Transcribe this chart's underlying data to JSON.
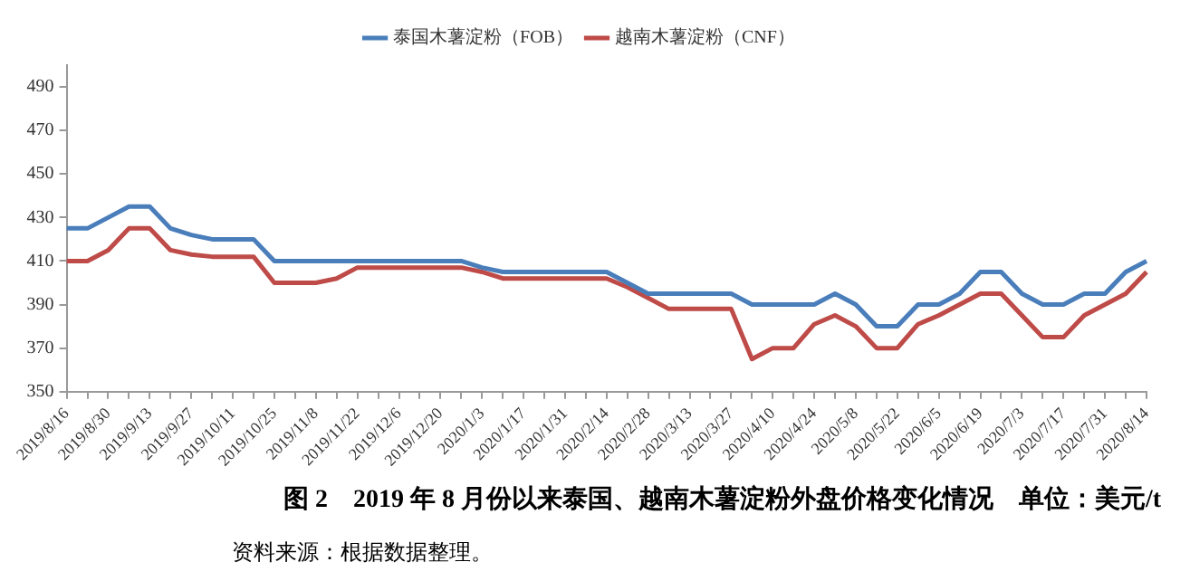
{
  "chart_data": {
    "type": "line",
    "title": "图 2　2019 年 8 月份以来泰国、越南木薯淀粉外盘价格变化情况　单位：美元/t",
    "annotations": [
      "资料来源：根据数据整理。"
    ],
    "categories": [
      "2019/8/16",
      null,
      "2019/8/30",
      null,
      "2019/9/13",
      null,
      "2019/9/27",
      null,
      "2019/10/11",
      null,
      "2019/10/25",
      null,
      "2019/11/8",
      null,
      "2019/11/22",
      null,
      "2019/12/6",
      null,
      "2019/12/20",
      null,
      "2020/1/3",
      null,
      "2020/1/17",
      null,
      "2020/1/31",
      null,
      "2020/2/14",
      null,
      "2020/2/28",
      null,
      "2020/3/13",
      null,
      "2020/3/27",
      null,
      "2020/4/10",
      null,
      "2020/4/24",
      null,
      "2020/5/8",
      null,
      "2020/5/22",
      null,
      "2020/6/5",
      null,
      "2020/6/19",
      null,
      "2020/7/3",
      null,
      "2020/7/17",
      null,
      "2020/7/31",
      null,
      "2020/8/14"
    ],
    "series": [
      {
        "name": "泰国木薯淀粉（FOB）",
        "color": "#4a7ebb",
        "values": [
          425,
          425,
          430,
          435,
          435,
          425,
          422,
          420,
          420,
          420,
          410,
          410,
          410,
          410,
          410,
          410,
          410,
          410,
          410,
          410,
          407,
          405,
          405,
          405,
          405,
          405,
          405,
          400,
          395,
          395,
          395,
          395,
          395,
          390,
          390,
          390,
          390,
          395,
          390,
          380,
          380,
          390,
          390,
          395,
          405,
          405,
          395,
          390,
          390,
          395,
          395,
          405,
          410
        ]
      },
      {
        "name": "越南木薯淀粉（CNF）",
        "color": "#be4b48",
        "values": [
          410,
          410,
          415,
          425,
          425,
          415,
          413,
          412,
          412,
          412,
          400,
          400,
          400,
          402,
          407,
          407,
          407,
          407,
          407,
          407,
          405,
          402,
          402,
          402,
          402,
          402,
          402,
          398,
          393,
          388,
          388,
          388,
          388,
          365,
          370,
          370,
          381,
          385,
          380,
          370,
          370,
          381,
          385,
          390,
          395,
          395,
          385,
          375,
          375,
          385,
          390,
          395,
          405
        ]
      }
    ],
    "ylim": [
      350,
      500
    ],
    "yticks": [
      350,
      370,
      390,
      410,
      430,
      450,
      470,
      490
    ],
    "grid": false,
    "legend": "top",
    "marker": "none",
    "line_style": "solid"
  }
}
